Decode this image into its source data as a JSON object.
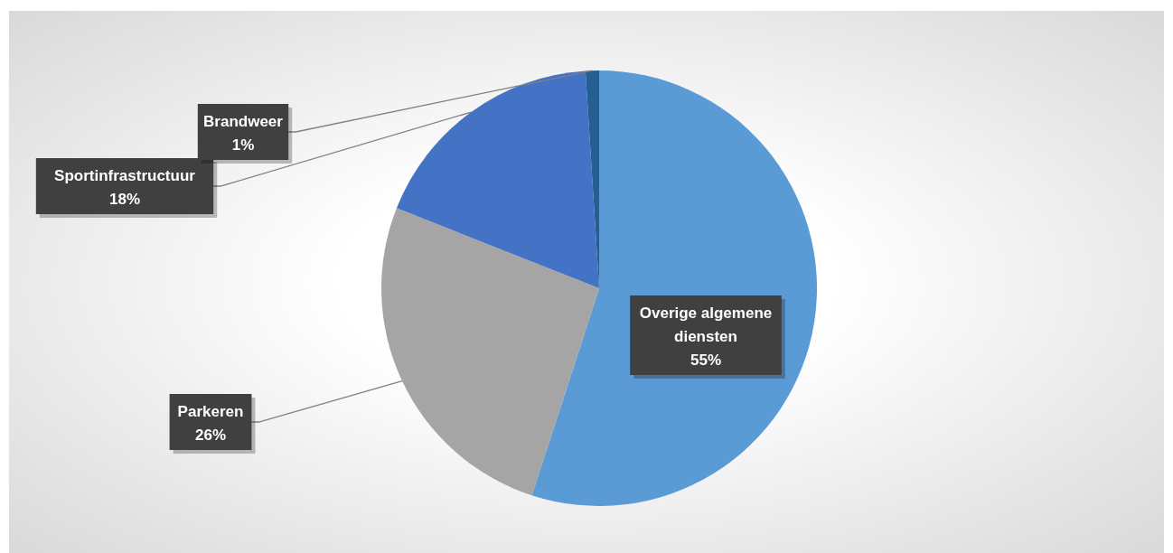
{
  "chart_data": {
    "type": "pie",
    "categories": [
      "Overige algemene diensten",
      "Parkeren",
      "Sportinfrastructuur",
      "Brandweer"
    ],
    "values": [
      55,
      26,
      18,
      1
    ],
    "value_labels": [
      "55%",
      "26%",
      "18%",
      "1%"
    ],
    "colors": [
      "#5b9bd5",
      "#a5a5a5",
      "#4472c4",
      "#255e91"
    ],
    "legend": false
  }
}
